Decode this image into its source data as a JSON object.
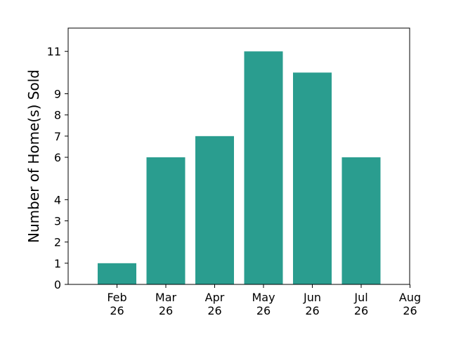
{
  "chart_data": {
    "type": "bar",
    "categories": [
      "Feb 26",
      "Mar 26",
      "Apr 26",
      "May 26",
      "Jun 26",
      "Jul 26"
    ],
    "values": [
      1,
      6,
      7,
      11,
      10,
      6
    ],
    "x_tick_labels": [
      [
        "Feb",
        "26"
      ],
      [
        "Mar",
        "26"
      ],
      [
        "Apr",
        "26"
      ],
      [
        "May",
        "26"
      ],
      [
        "Jun",
        "26"
      ],
      [
        "Jul",
        "26"
      ],
      [
        "Aug",
        "26"
      ]
    ],
    "y_ticks": [
      0,
      1,
      2,
      3,
      4,
      6,
      7,
      8,
      9,
      11
    ],
    "ylim": [
      0,
      12.1
    ],
    "xlabel": "",
    "ylabel": "Number of Home(s) Sold",
    "title": "",
    "grid": false,
    "bar_color": "#2a9d8f"
  }
}
